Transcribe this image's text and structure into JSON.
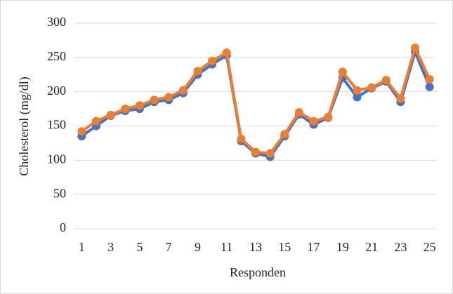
{
  "chart_data": {
    "type": "line",
    "x": [
      1,
      2,
      3,
      4,
      5,
      6,
      7,
      8,
      9,
      10,
      11,
      12,
      13,
      14,
      15,
      16,
      17,
      18,
      19,
      20,
      21,
      22,
      23,
      24,
      25
    ],
    "series": [
      {
        "color": "#4472c4",
        "values": [
          135,
          150,
          165,
          172,
          175,
          185,
          188,
          198,
          225,
          240,
          253,
          128,
          110,
          105,
          135,
          167,
          152,
          162,
          220,
          192,
          205,
          215,
          185,
          258,
          207
        ]
      },
      {
        "color": "#ed7d31",
        "values": [
          142,
          157,
          166,
          175,
          180,
          188,
          192,
          202,
          230,
          245,
          257,
          131,
          112,
          110,
          138,
          170,
          157,
          163,
          229,
          202,
          206,
          217,
          190,
          264,
          218
        ]
      }
    ],
    "xlim": [
      0.5,
      25.5
    ],
    "xticks": [
      1,
      3,
      5,
      7,
      9,
      11,
      13,
      15,
      17,
      19,
      21,
      23,
      25
    ],
    "ylim": [
      0,
      300
    ],
    "yticks": [
      0,
      50,
      100,
      150,
      200,
      250,
      300
    ],
    "xlabel": "Responden",
    "ylabel": "Cholesterol (mg/dl)",
    "grid": true
  }
}
